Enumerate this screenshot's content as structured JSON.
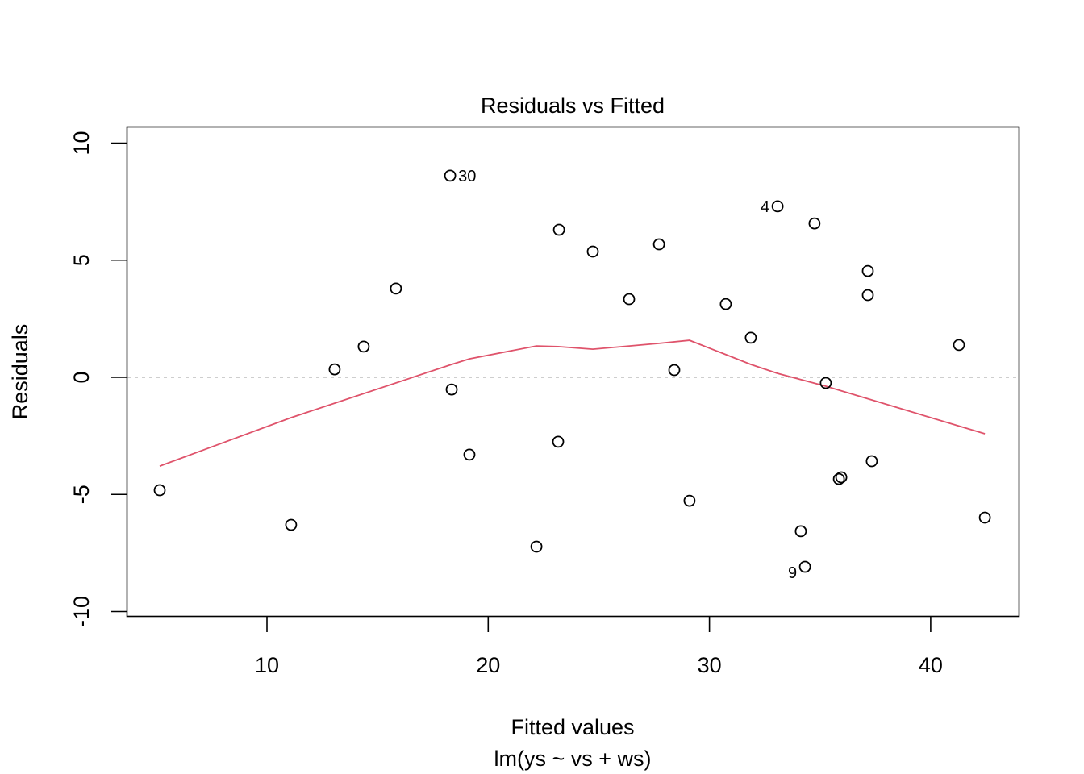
{
  "chart_data": {
    "type": "scatter",
    "title": "Residuals vs Fitted",
    "xlabel": "Fitted values",
    "subtitle": "lm(ys ~ vs + ws)",
    "ylabel": "Residuals",
    "xlim": [
      3.7,
      44.0
    ],
    "ylim": [
      -10.2,
      10.7
    ],
    "x_ticks": [
      10,
      20,
      30,
      40
    ],
    "y_ticks": [
      -10,
      -5,
      0,
      5,
      10
    ],
    "grid": false,
    "reference_line": {
      "y": 0,
      "style": "dotted",
      "color": "#bebebe"
    },
    "series": [
      {
        "name": "residuals",
        "marker": "open-circle",
        "color": "#000000",
        "points": [
          {
            "x": 5.15,
            "y": -4.82
          },
          {
            "x": 11.09,
            "y": -6.3
          },
          {
            "x": 13.06,
            "y": 0.34
          },
          {
            "x": 14.37,
            "y": 1.31
          },
          {
            "x": 15.83,
            "y": 3.79
          },
          {
            "x": 18.28,
            "y": 8.61,
            "label": "30"
          },
          {
            "x": 18.35,
            "y": -0.52
          },
          {
            "x": 19.15,
            "y": -3.3
          },
          {
            "x": 22.18,
            "y": -7.23
          },
          {
            "x": 23.16,
            "y": -2.75
          },
          {
            "x": 23.2,
            "y": 6.3
          },
          {
            "x": 24.73,
            "y": 5.37
          },
          {
            "x": 26.37,
            "y": 3.34
          },
          {
            "x": 27.72,
            "y": 5.68
          },
          {
            "x": 28.41,
            "y": 0.31
          },
          {
            "x": 29.1,
            "y": -5.27
          },
          {
            "x": 30.74,
            "y": 3.13
          },
          {
            "x": 31.87,
            "y": 1.69
          },
          {
            "x": 33.08,
            "y": 7.3,
            "label": "4"
          },
          {
            "x": 34.13,
            "y": -6.57
          },
          {
            "x": 34.32,
            "y": -8.09,
            "label": "9"
          },
          {
            "x": 34.75,
            "y": 6.57
          },
          {
            "x": 35.26,
            "y": -0.24
          },
          {
            "x": 35.85,
            "y": -4.34
          },
          {
            "x": 35.96,
            "y": -4.27
          },
          {
            "x": 37.16,
            "y": 4.54
          },
          {
            "x": 37.16,
            "y": 3.51
          },
          {
            "x": 37.34,
            "y": -3.58
          },
          {
            "x": 41.28,
            "y": 1.38
          },
          {
            "x": 42.45,
            "y": -5.99
          }
        ]
      },
      {
        "name": "smoother",
        "type": "line",
        "color": "#DF536B",
        "points": [
          {
            "x": 5.15,
            "y": -3.79
          },
          {
            "x": 11.09,
            "y": -1.72
          },
          {
            "x": 18.35,
            "y": 0.55
          },
          {
            "x": 19.15,
            "y": 0.79
          },
          {
            "x": 22.18,
            "y": 1.34
          },
          {
            "x": 23.16,
            "y": 1.31
          },
          {
            "x": 24.73,
            "y": 1.2
          },
          {
            "x": 27.72,
            "y": 1.45
          },
          {
            "x": 29.1,
            "y": 1.58
          },
          {
            "x": 31.87,
            "y": 0.55
          },
          {
            "x": 33.08,
            "y": 0.17
          },
          {
            "x": 35.26,
            "y": -0.38
          },
          {
            "x": 42.45,
            "y": -2.41
          }
        ]
      }
    ]
  }
}
